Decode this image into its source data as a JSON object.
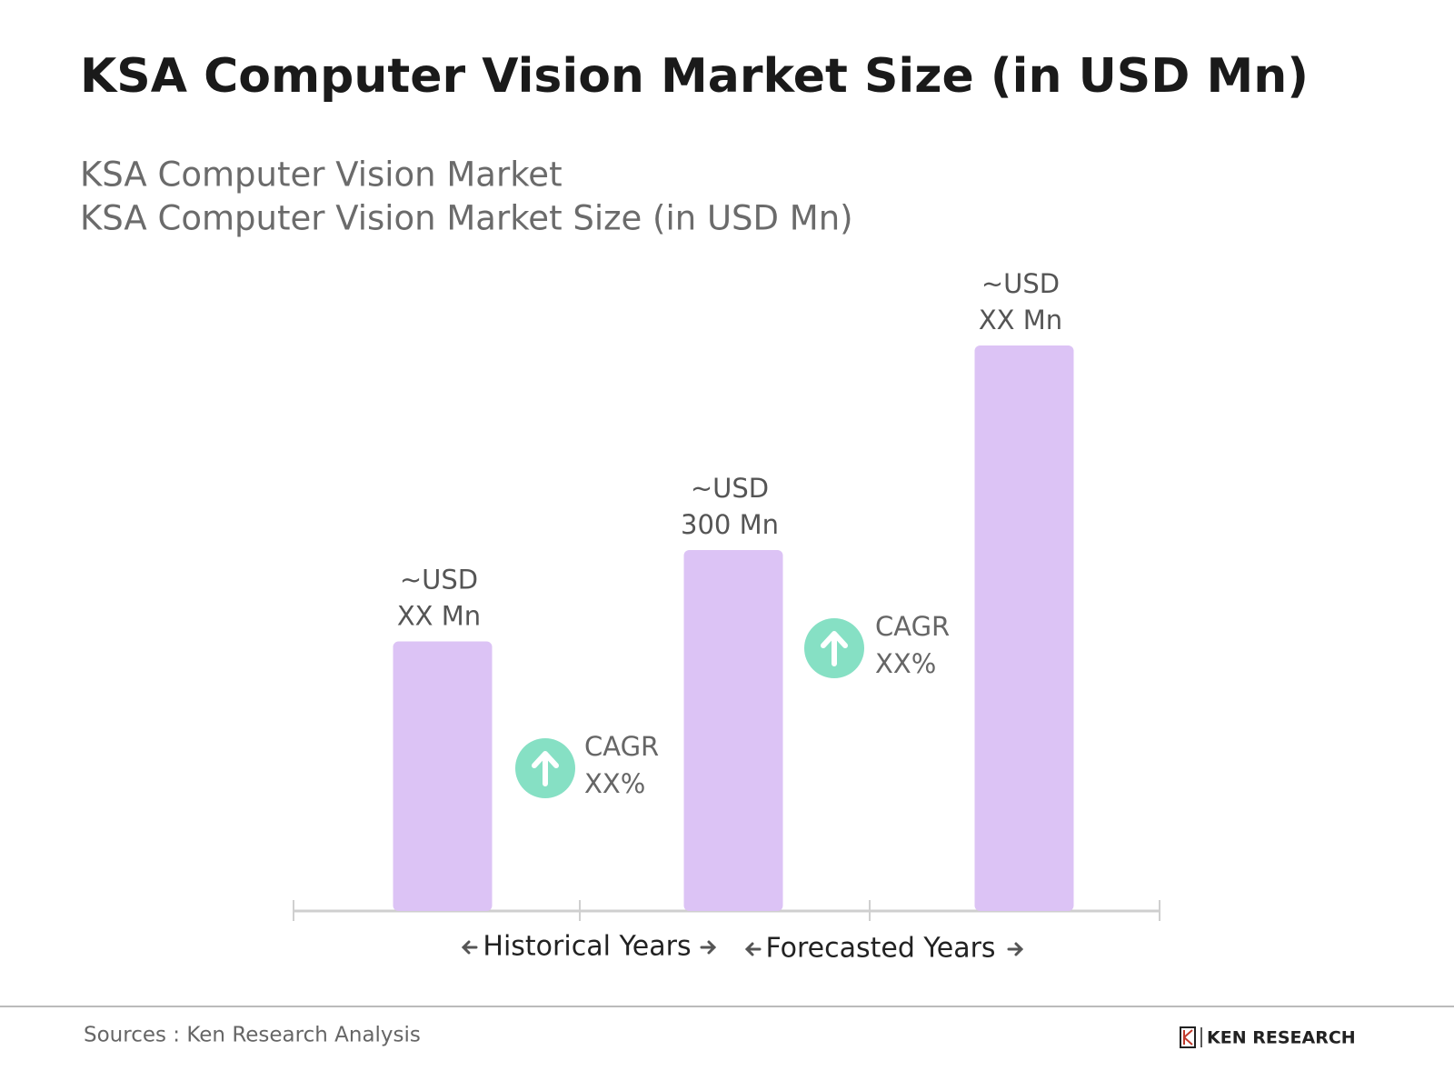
{
  "chart_data": {
    "type": "bar",
    "title": "KSA Computer Vision Market Size (in USD Mn)",
    "subtitle": [
      "KSA Computer Vision Market",
      "KSA Computer Vision Market Size (in USD Mn)"
    ],
    "values": [
      224,
      300,
      470
    ],
    "value_labels": [
      [
        "~USD",
        "XX Mn"
      ],
      [
        "~USD",
        "300 Mn"
      ],
      [
        "~USD",
        "XX Mn"
      ]
    ],
    "color": "#dcc3f5",
    "annotations": [
      [
        "CAGR",
        "XX%"
      ],
      [
        "CAGR",
        "XX%"
      ]
    ],
    "annotation_color": "#86e0c4",
    "period_labels": [
      "Historical Years",
      "Forecasted Years"
    ],
    "source": "Sources : Ken Research Analysis",
    "logo": "KEN RESEARCH"
  }
}
